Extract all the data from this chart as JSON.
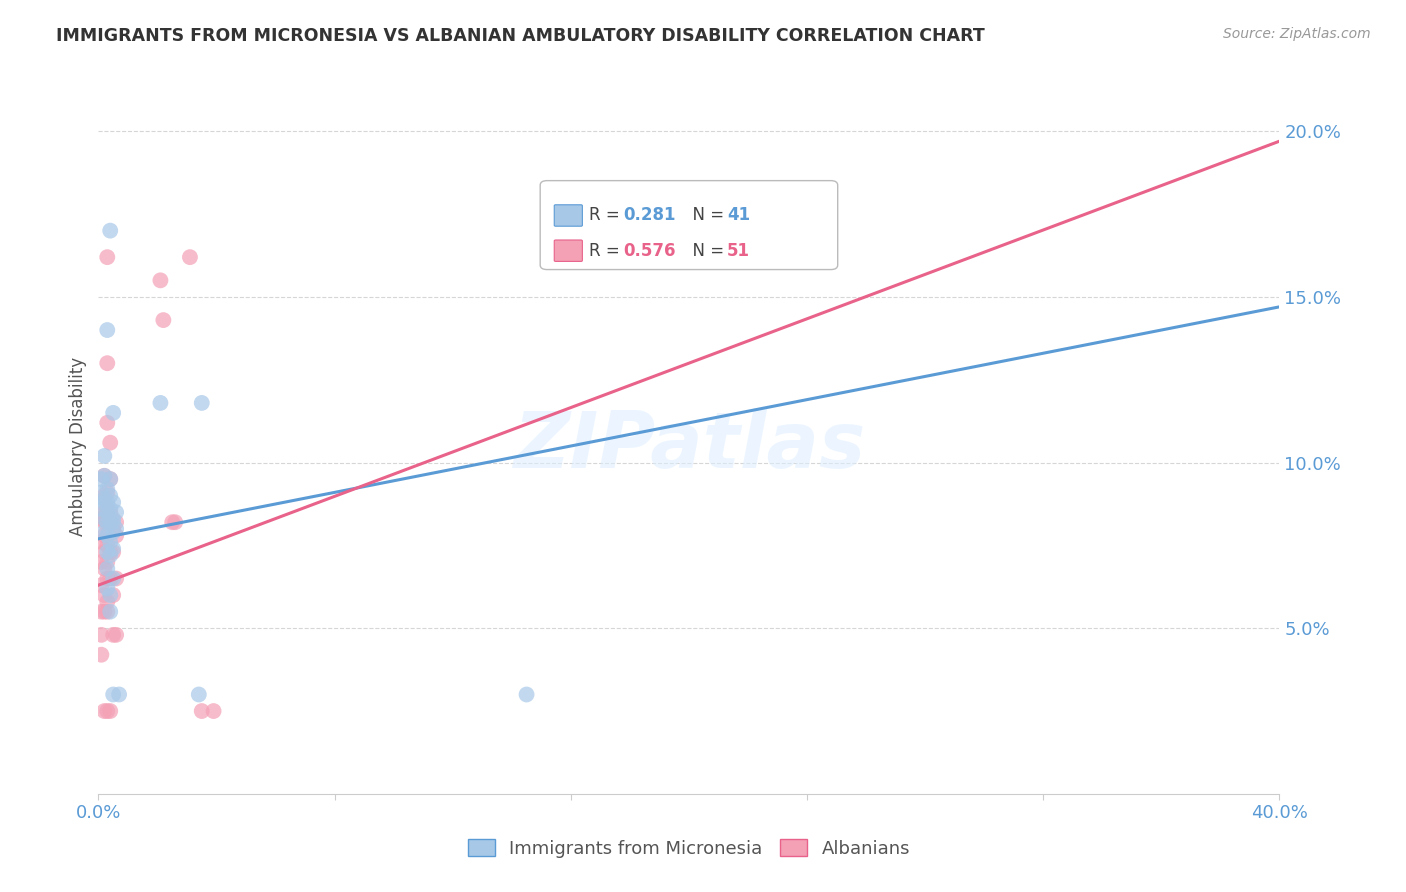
{
  "title": "IMMIGRANTS FROM MICRONESIA VS ALBANIAN AMBULATORY DISABILITY CORRELATION CHART",
  "source": "Source: ZipAtlas.com",
  "ylabel_label": "Ambulatory Disability",
  "xlim": [
    0.0,
    0.4
  ],
  "ylim": [
    0.0,
    0.21
  ],
  "color_blue": "#A8C8E8",
  "color_pink": "#F4A0B5",
  "line_color_blue": "#5B9BD5",
  "line_color_pink": "#E8628A",
  "watermark": "ZIPatlas",
  "blue_scatter": [
    [
      0.001,
      0.086
    ],
    [
      0.001,
      0.095
    ],
    [
      0.001,
      0.091
    ],
    [
      0.002,
      0.088
    ],
    [
      0.002,
      0.102
    ],
    [
      0.002,
      0.096
    ],
    [
      0.002,
      0.089
    ],
    [
      0.002,
      0.083
    ],
    [
      0.002,
      0.079
    ],
    [
      0.003,
      0.092
    ],
    [
      0.003,
      0.088
    ],
    [
      0.003,
      0.085
    ],
    [
      0.003,
      0.082
    ],
    [
      0.003,
      0.078
    ],
    [
      0.003,
      0.073
    ],
    [
      0.003,
      0.068
    ],
    [
      0.003,
      0.062
    ],
    [
      0.003,
      0.14
    ],
    [
      0.004,
      0.095
    ],
    [
      0.004,
      0.09
    ],
    [
      0.004,
      0.086
    ],
    [
      0.004,
      0.082
    ],
    [
      0.004,
      0.076
    ],
    [
      0.004,
      0.072
    ],
    [
      0.004,
      0.06
    ],
    [
      0.004,
      0.055
    ],
    [
      0.004,
      0.17
    ],
    [
      0.005,
      0.115
    ],
    [
      0.005,
      0.088
    ],
    [
      0.005,
      0.083
    ],
    [
      0.005,
      0.079
    ],
    [
      0.005,
      0.074
    ],
    [
      0.005,
      0.065
    ],
    [
      0.005,
      0.082
    ],
    [
      0.005,
      0.03
    ],
    [
      0.006,
      0.085
    ],
    [
      0.006,
      0.08
    ],
    [
      0.007,
      0.03
    ],
    [
      0.021,
      0.118
    ],
    [
      0.034,
      0.03
    ],
    [
      0.035,
      0.118
    ],
    [
      0.145,
      0.03
    ]
  ],
  "pink_scatter": [
    [
      0.001,
      0.083
    ],
    [
      0.001,
      0.076
    ],
    [
      0.001,
      0.07
    ],
    [
      0.001,
      0.063
    ],
    [
      0.001,
      0.055
    ],
    [
      0.001,
      0.048
    ],
    [
      0.001,
      0.042
    ],
    [
      0.002,
      0.096
    ],
    [
      0.002,
      0.09
    ],
    [
      0.002,
      0.085
    ],
    [
      0.002,
      0.082
    ],
    [
      0.002,
      0.078
    ],
    [
      0.002,
      0.073
    ],
    [
      0.002,
      0.068
    ],
    [
      0.002,
      0.06
    ],
    [
      0.002,
      0.055
    ],
    [
      0.002,
      0.025
    ],
    [
      0.003,
      0.162
    ],
    [
      0.003,
      0.13
    ],
    [
      0.003,
      0.112
    ],
    [
      0.003,
      0.091
    ],
    [
      0.003,
      0.086
    ],
    [
      0.003,
      0.082
    ],
    [
      0.003,
      0.075
    ],
    [
      0.003,
      0.07
    ],
    [
      0.003,
      0.065
    ],
    [
      0.003,
      0.058
    ],
    [
      0.003,
      0.055
    ],
    [
      0.003,
      0.025
    ],
    [
      0.004,
      0.106
    ],
    [
      0.004,
      0.095
    ],
    [
      0.004,
      0.085
    ],
    [
      0.004,
      0.082
    ],
    [
      0.004,
      0.073
    ],
    [
      0.004,
      0.065
    ],
    [
      0.004,
      0.025
    ],
    [
      0.005,
      0.08
    ],
    [
      0.005,
      0.073
    ],
    [
      0.005,
      0.06
    ],
    [
      0.005,
      0.048
    ],
    [
      0.006,
      0.082
    ],
    [
      0.006,
      0.078
    ],
    [
      0.006,
      0.065
    ],
    [
      0.006,
      0.048
    ],
    [
      0.021,
      0.155
    ],
    [
      0.022,
      0.143
    ],
    [
      0.025,
      0.082
    ],
    [
      0.026,
      0.082
    ],
    [
      0.031,
      0.162
    ],
    [
      0.035,
      0.025
    ],
    [
      0.039,
      0.025
    ]
  ],
  "blue_line_x": [
    0.0,
    0.4
  ],
  "blue_line_y": [
    0.077,
    0.147
  ],
  "pink_line_x": [
    0.0,
    0.4
  ],
  "pink_line_y": [
    0.063,
    0.197
  ]
}
